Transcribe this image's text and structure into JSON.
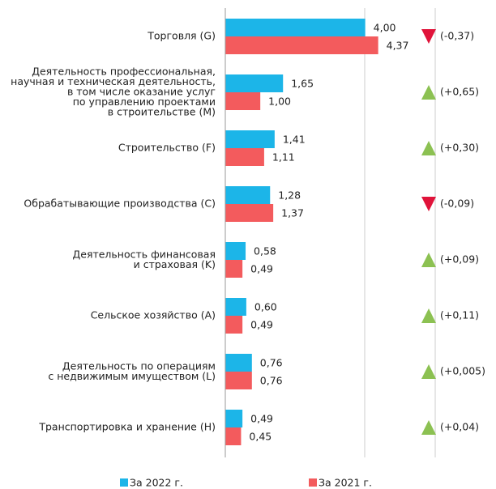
{
  "chart_data": {
    "type": "bar",
    "orientation": "horizontal",
    "categories": [
      [
        "Торговля (G)"
      ],
      [
        "Деятельность профессиональная,",
        "научная и техническая деятельность,",
        "в том числе оказание услуг",
        "по управлению проектами",
        "в строительстве (M)"
      ],
      [
        "Строительство (F)"
      ],
      [
        "Обрабатывающие производства (C)"
      ],
      [
        "Деятельность финансовая",
        "и страховая (K)"
      ],
      [
        "Сельское хозяйство (A)"
      ],
      [
        "Деятельность по операциям",
        "с недвижимым имуществом (L)"
      ],
      [
        "Транспортировка и хранение (H)"
      ]
    ],
    "series": [
      {
        "name": "За 2022 г.",
        "color": "#1cb5e8",
        "values": [
          4.0,
          1.65,
          1.41,
          1.28,
          0.58,
          0.6,
          0.76,
          0.49
        ],
        "value_labels": [
          "4,00",
          "1,65",
          "1,41",
          "1,28",
          "0,58",
          "0,60",
          "0,76",
          "0,49"
        ]
      },
      {
        "name": "За 2021 г.",
        "color": "#f35b5d",
        "values": [
          4.37,
          1.0,
          1.11,
          1.37,
          0.49,
          0.49,
          0.76,
          0.45
        ],
        "value_labels": [
          "4,37",
          "1,00",
          "1,11",
          "1,37",
          "0,49",
          "0,49",
          "0,76",
          "0,45"
        ]
      }
    ],
    "changes": [
      -0.37,
      0.65,
      0.3,
      -0.09,
      0.09,
      0.11,
      0.005,
      0.04
    ],
    "change_labels": [
      "(-0,37)",
      "(+0,65)",
      "(+0,30)",
      "(-0,09)",
      "(+0,09)",
      "(+0,11)",
      "(+0,005)",
      "(+0,04)"
    ],
    "up_color": "#8cc152",
    "down_color": "#e0133a",
    "xlim": [
      0,
      6
    ]
  }
}
